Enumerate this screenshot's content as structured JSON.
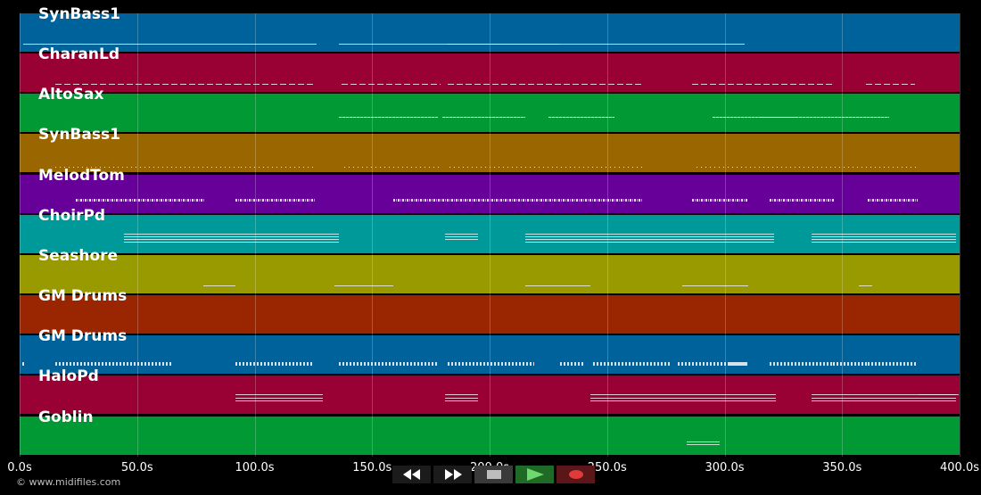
{
  "tracks": [
    {
      "name": "SynBass1",
      "color": "#00629a",
      "style": "long",
      "notes": [
        [
          1.5,
          125,
          1
        ],
        [
          136,
          94,
          1
        ],
        [
          182,
          126.5,
          1
        ]
      ]
    },
    {
      "name": "CharanLd",
      "color": "#990033",
      "style": "dash",
      "notes": [
        [
          15,
          78,
          1
        ],
        [
          92,
          33,
          1
        ],
        [
          137,
          42,
          1
        ],
        [
          182,
          83,
          1
        ],
        [
          286,
          60,
          1
        ],
        [
          360,
          21,
          1
        ]
      ]
    },
    {
      "name": "AltoSax",
      "color": "#009933",
      "style": "dense",
      "notes": [
        [
          136,
          42,
          1
        ],
        [
          180,
          35,
          1
        ],
        [
          225,
          28,
          1
        ],
        [
          295,
          36,
          1
        ],
        [
          315,
          55,
          1
        ]
      ]
    },
    {
      "name": "SynBass1",
      "color": "#996600",
      "style": "dots",
      "notes": [
        [
          15,
          79,
          1
        ],
        [
          94,
          31,
          1
        ],
        [
          138,
          42,
          1
        ],
        [
          183,
          82,
          1
        ],
        [
          288,
          40,
          1
        ],
        [
          328,
          55,
          1
        ]
      ]
    },
    {
      "name": "MelodTom",
      "color": "#660099",
      "style": "squiggle",
      "notes": [
        [
          24,
          55,
          1
        ],
        [
          92,
          34,
          1
        ],
        [
          159,
          106,
          1
        ],
        [
          286,
          24,
          1
        ],
        [
          319,
          28,
          1
        ],
        [
          361,
          21,
          1
        ]
      ]
    },
    {
      "name": "ChoirPd",
      "color": "#009999",
      "style": "lines",
      "notes": [
        [
          44.5,
          91.5,
          4
        ],
        [
          181,
          14,
          3
        ],
        [
          215,
          106,
          4
        ],
        [
          337,
          61.5,
          4
        ]
      ]
    },
    {
      "name": "Seashore",
      "color": "#999900",
      "style": "long",
      "notes": [
        [
          78,
          14,
          1
        ],
        [
          134,
          25,
          1
        ],
        [
          215,
          28,
          1
        ],
        [
          282,
          28,
          1
        ],
        [
          357,
          6,
          1
        ]
      ]
    },
    {
      "name": "GM Drums",
      "color": "#992600",
      "style": "none",
      "notes": []
    },
    {
      "name": "GM Drums",
      "color": "#00629a",
      "style": "drums",
      "notes": [
        [
          1,
          1,
          1
        ],
        [
          15,
          50,
          1
        ],
        [
          92,
          33,
          1
        ],
        [
          136,
          42,
          1
        ],
        [
          182,
          37,
          1
        ],
        [
          230,
          10,
          1
        ],
        [
          244,
          33,
          1
        ],
        [
          280,
          30,
          1
        ],
        [
          302,
          7,
          1
        ],
        [
          319,
          28,
          1
        ],
        [
          346,
          15,
          1
        ],
        [
          361,
          21,
          1
        ]
      ]
    },
    {
      "name": "HaloPd",
      "color": "#990033",
      "style": "lines",
      "notes": [
        [
          92,
          37,
          3
        ],
        [
          181,
          14,
          3
        ],
        [
          243,
          79,
          3
        ],
        [
          337,
          61.5,
          3
        ],
        [
          382.5,
          17,
          1
        ]
      ]
    },
    {
      "name": "Goblin",
      "color": "#009933",
      "style": "lines",
      "notes": [
        [
          284,
          14,
          2
        ]
      ]
    }
  ],
  "axis": {
    "ticks": [
      "0.0s",
      "50.0s",
      "100.0s",
      "150.0s",
      "200.0s",
      "250.0s",
      "300.0s",
      "350.0s",
      "400.0s"
    ],
    "max_seconds": 400
  },
  "copyright": "© www.midifiles.com",
  "controls": [
    {
      "name": "rewind-button",
      "icon": "rewind-icon",
      "bg": "#1b1b1b",
      "fg": "#ffffff"
    },
    {
      "name": "fast-forward-button",
      "icon": "fast-forward-icon",
      "bg": "#1b1b1b",
      "fg": "#ffffff"
    },
    {
      "name": "stop-button",
      "icon": "stop-icon",
      "bg": "#3a3a3a",
      "fg": "#bdbdbd"
    },
    {
      "name": "play-button",
      "icon": "play-icon",
      "bg": "#1f6a25",
      "fg": "#6fd86f"
    },
    {
      "name": "record-button",
      "icon": "record-icon",
      "bg": "#5a1618",
      "fg": "#e03a3a"
    }
  ]
}
